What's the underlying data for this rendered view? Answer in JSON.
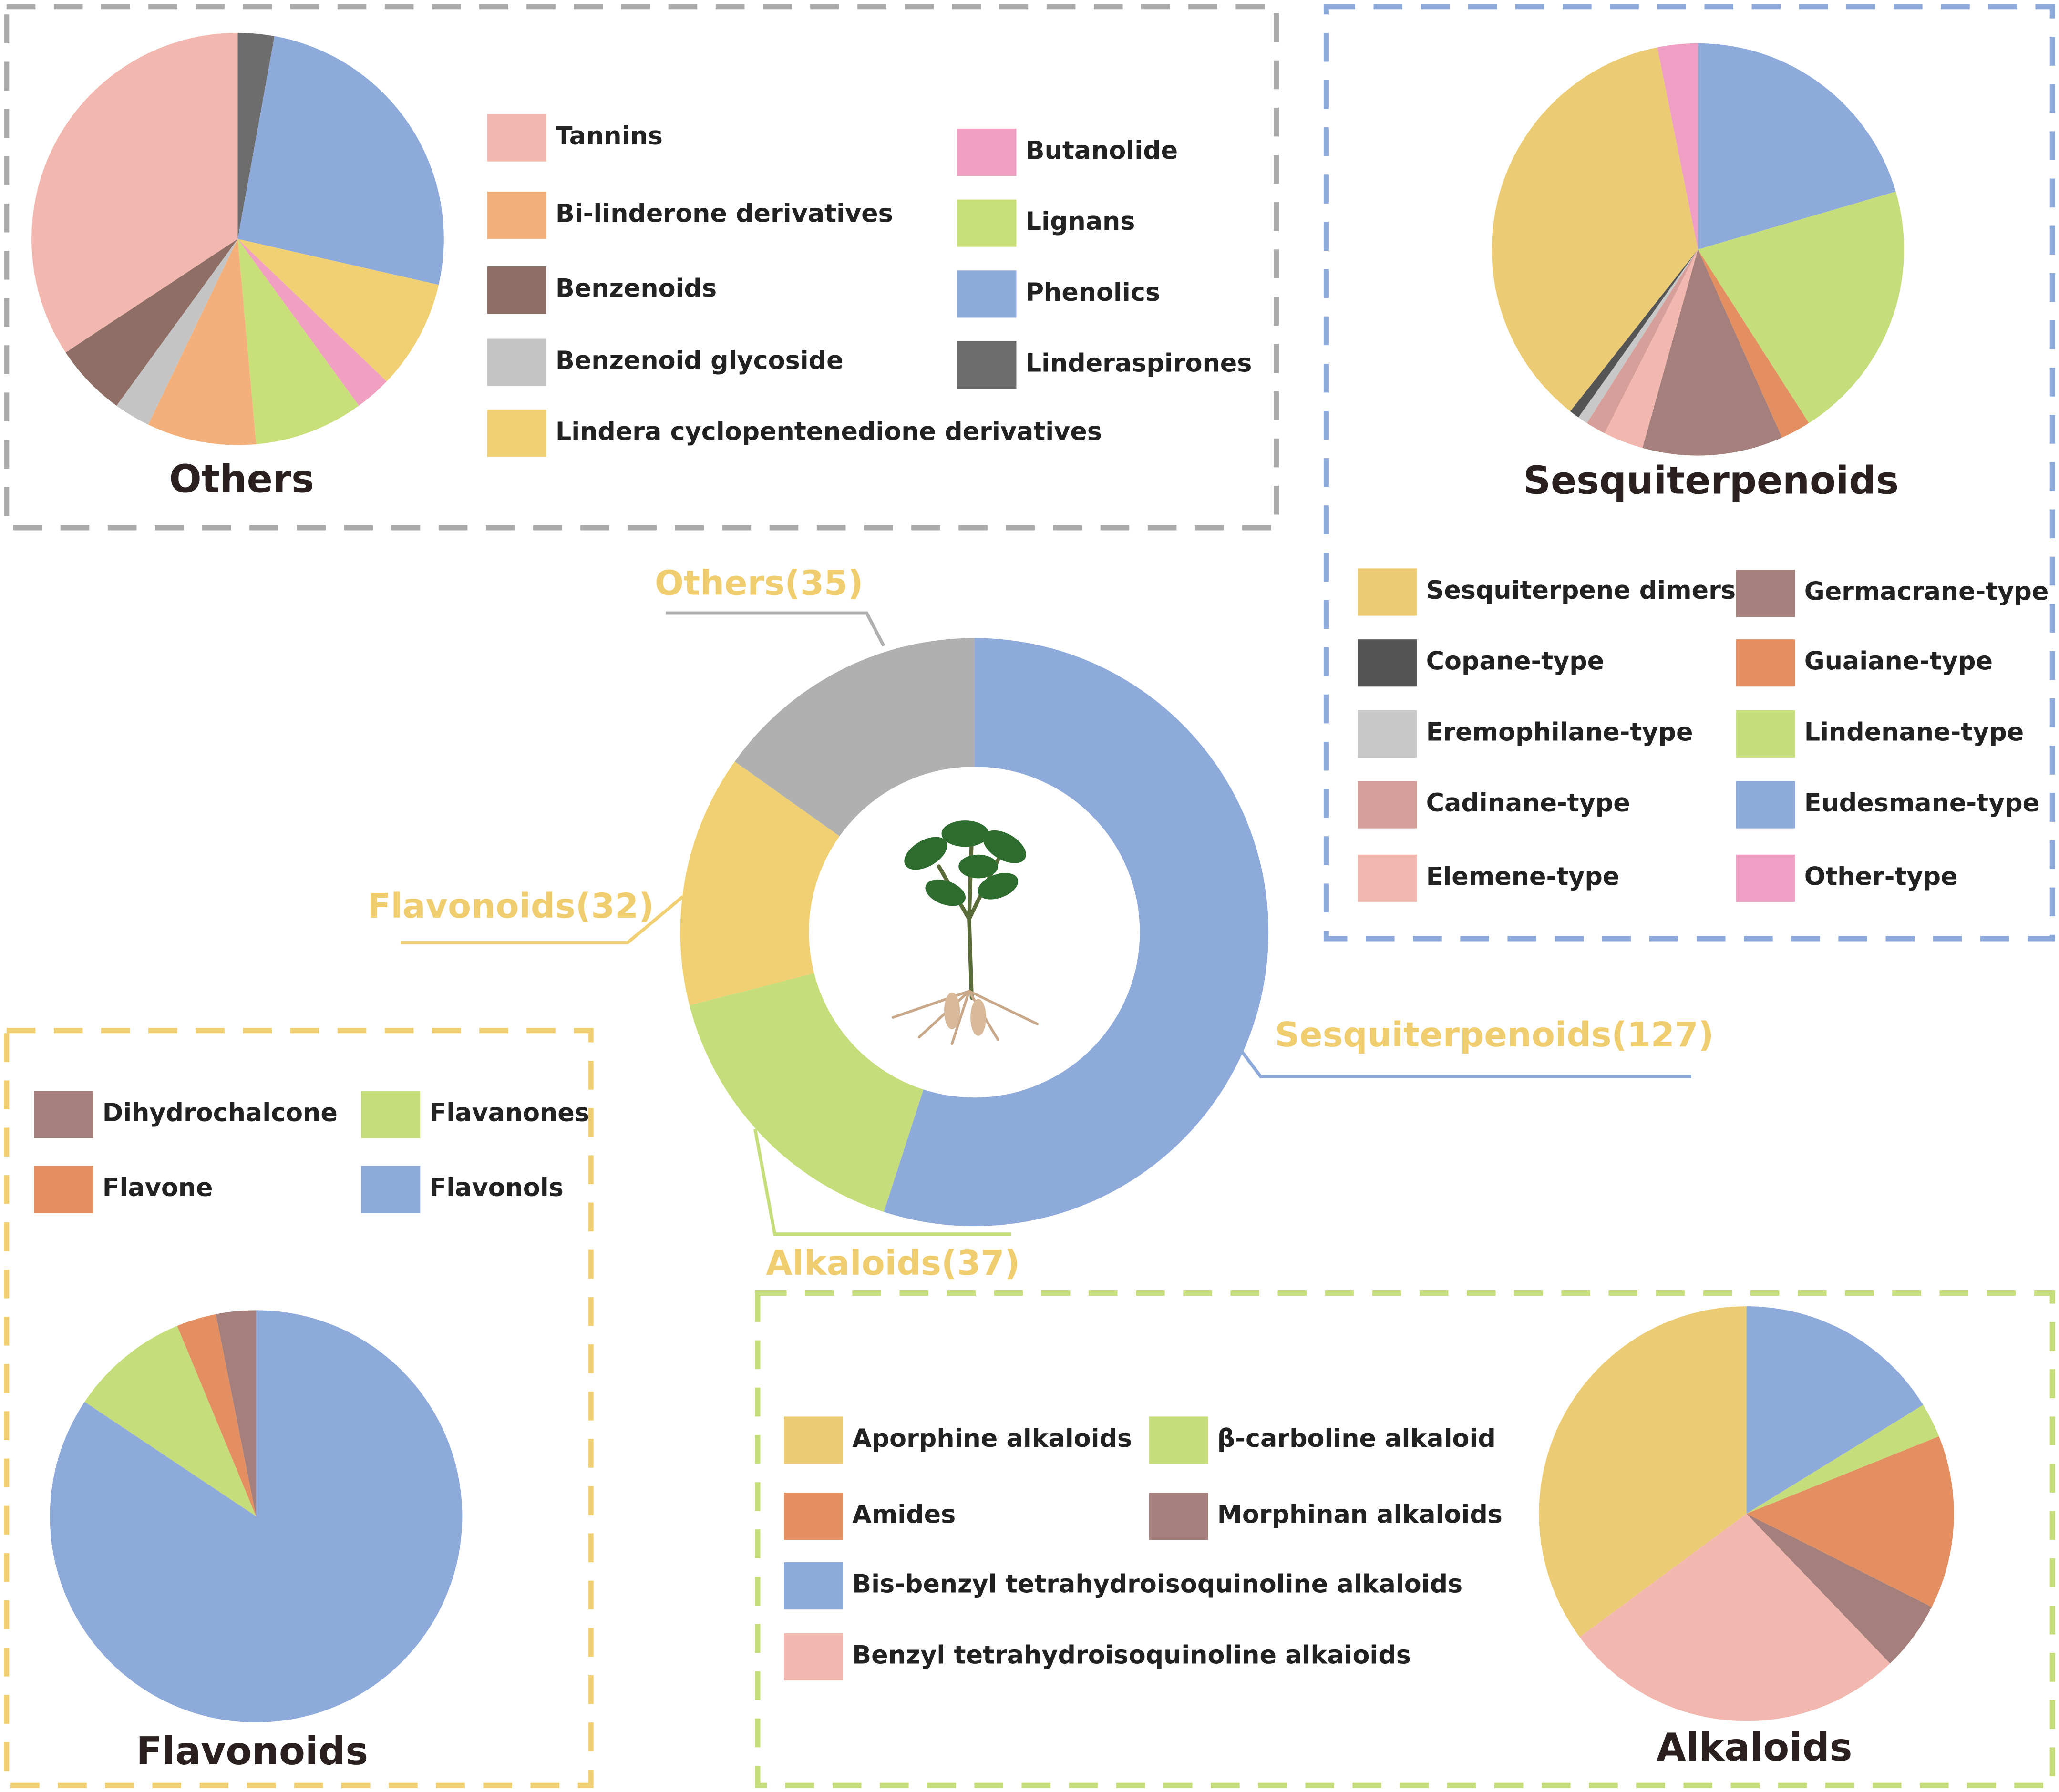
{
  "chart_data": [
    {
      "type": "donut",
      "values": [
        127,
        37,
        32,
        35
      ],
      "value_labels": [
        "Sesquiterpenoids(127)",
        "Alkaloids(37)",
        "Flavonoids(32)",
        "Others(35)"
      ],
      "colors": [
        "#8eaadb",
        "#c5dd7a",
        "#f0d073",
        "#b0b0b0"
      ]
    },
    {
      "type": "pie",
      "title": "Others",
      "categories": [
        "Linderaspirones",
        "Phenolics",
        "Lindera cyclopentenedione derivatives",
        "Butanolide",
        "Lignans",
        "Bi-linderone derivatives",
        "Benzenoid glycoside",
        "Benzenoids",
        "Tannins"
      ],
      "values": [
        1,
        9,
        3,
        1,
        3,
        3,
        1,
        2,
        12
      ],
      "colors": [
        "#6d6d6d",
        "#8eaadb",
        "#f0d073",
        "#f0a0c0",
        "#c9e07a",
        "#f4b07a",
        "#c4c4c4",
        "#8f6e66",
        "#f2b8b0"
      ]
    },
    {
      "type": "pie",
      "title": "Sesquiterpenoids",
      "categories": [
        "Eudesmane-type",
        "Lindenane-type",
        "Guaiane-type",
        "Germacrane-type",
        "Elemene-type",
        "Cadinane-type",
        "Eremophilane-type",
        "Copane-type",
        "Sesquiterpene dimers",
        "Other-type"
      ],
      "values": [
        26,
        26,
        3,
        14,
        4,
        2,
        1,
        1,
        46,
        4
      ],
      "colors": [
        "#8eaadb",
        "#c5dd7a",
        "#e48f61",
        "#a47f7b",
        "#f2b8b0",
        "#d79f9a",
        "#c8c8c8",
        "#555555",
        "#ebcb74",
        "#ee9fc3"
      ]
    },
    {
      "type": "pie",
      "title": "Flavonoids",
      "categories": [
        "Flavonols",
        "Flavanones",
        "Flavone",
        "Dihydrochalcone"
      ],
      "values": [
        27,
        3,
        1,
        1
      ],
      "colors": [
        "#8eaadb",
        "#c5dd7a",
        "#e48f61",
        "#a47f7b"
      ]
    },
    {
      "type": "pie",
      "title": "Alkaloids",
      "categories": [
        "Bis-benzyl tetrahydroisoquinoline alkaloids",
        "β-carboline alkaloid",
        "Amides",
        "Morphinan alkaloids",
        "Benzyl tetrahydroisoquinoline alkaioids",
        "Aporphine alkaloids"
      ],
      "values": [
        6,
        1,
        5,
        2,
        10,
        13
      ],
      "colors": [
        "#8eaadb",
        "#c5dd7a",
        "#e48f61",
        "#a47f7b",
        "#f2b8b0",
        "#ebcb74"
      ]
    }
  ]
}
